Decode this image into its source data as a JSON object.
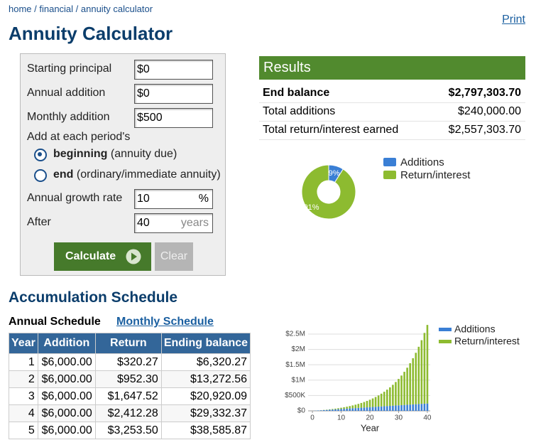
{
  "breadcrumb": "home / financial / annuity calculator",
  "print": "Print",
  "title": "Annuity Calculator",
  "form": {
    "fields": [
      {
        "label": "Starting principal",
        "value": "$0"
      },
      {
        "label": "Annual addition",
        "value": "$0"
      },
      {
        "label": "Monthly addition",
        "value": "$500"
      }
    ],
    "period_label": "Add at each period's",
    "options": [
      {
        "bold": "beginning",
        "note": "(annuity due)",
        "selected": true
      },
      {
        "bold": "end",
        "note": "(ordinary/immediate annuity)",
        "selected": false
      }
    ],
    "growth": {
      "label": "Annual growth rate",
      "value": "10",
      "unit": "%"
    },
    "after": {
      "label": "After",
      "value": "40",
      "unit": "years"
    },
    "buttons": [
      "Calculate",
      "Clear"
    ]
  },
  "results": {
    "title": "Results",
    "rows": [
      [
        "End balance",
        "$2,797,303.70"
      ],
      [
        "Total additions",
        "$240,000.00"
      ],
      [
        "Total return/interest earned",
        "$2,557,303.70"
      ]
    ]
  },
  "schedule": {
    "title": "Accumulation Schedule",
    "tabs": [
      "Annual Schedule",
      "Monthly Schedule"
    ],
    "columns": [
      "Year",
      "Addition",
      "Return",
      "Ending balance"
    ],
    "rows": [
      [
        "1",
        "$6,000.00",
        "$320.27",
        "$6,320.27"
      ],
      [
        "2",
        "$6,000.00",
        "$952.30",
        "$13,272.56"
      ],
      [
        "3",
        "$6,000.00",
        "$1,647.52",
        "$20,920.09"
      ],
      [
        "4",
        "$6,000.00",
        "$2,412.28",
        "$29,332.37"
      ],
      [
        "5",
        "$6,000.00",
        "$3,253.50",
        "$38,585.87"
      ]
    ]
  },
  "chart_data": [
    {
      "type": "pie",
      "donut": true,
      "categories": [
        "Additions",
        "Return/interest"
      ],
      "values": [
        9,
        91
      ],
      "value_labels": [
        "9%",
        "91%"
      ],
      "colors": [
        "#3a7fd5",
        "#8dbb30"
      ],
      "legend": "right"
    },
    {
      "type": "bar",
      "stacked": true,
      "xlabel": "Year",
      "x": [
        1,
        2,
        3,
        4,
        5,
        6,
        7,
        8,
        9,
        10,
        11,
        12,
        13,
        14,
        15,
        16,
        17,
        18,
        19,
        20,
        21,
        22,
        23,
        24,
        25,
        26,
        27,
        28,
        29,
        30,
        31,
        32,
        33,
        34,
        35,
        36,
        37,
        38,
        39,
        40
      ],
      "xlim": [
        -1.5,
        41
      ],
      "xticks": [
        0,
        10,
        20,
        30,
        40
      ],
      "ylim": [
        0,
        2800000
      ],
      "yticks": [
        {
          "value": 0,
          "label": "$0"
        },
        {
          "value": 500000,
          "label": "$500K"
        },
        {
          "value": 1000000,
          "label": "$1M"
        },
        {
          "value": 1500000,
          "label": "$1.5M"
        },
        {
          "value": 2000000,
          "label": "$2M"
        },
        {
          "value": 2500000,
          "label": "$2.5M"
        }
      ],
      "grid": true,
      "legend": "upper right",
      "series": [
        {
          "name": "Additions",
          "color": "#3a7fd5",
          "values": [
            6000,
            12000,
            18000,
            24000,
            30000,
            36000,
            42000,
            48000,
            54000,
            60000,
            66000,
            72000,
            78000,
            84000,
            90000,
            96000,
            102000,
            108000,
            114000,
            120000,
            126000,
            132000,
            138000,
            144000,
            150000,
            156000,
            162000,
            168000,
            174000,
            180000,
            186000,
            192000,
            198000,
            204000,
            210000,
            216000,
            222000,
            228000,
            234000,
            240000
          ]
        },
        {
          "name": "Return/interest",
          "color": "#8dbb30",
          "values": [
            320,
            1273,
            2920,
            5332,
            8586,
            12765,
            17962,
            24278,
            31826,
            40729,
            51122,
            63155,
            76990,
            92809,
            110811,
            131212,
            154254,
            180199,
            209339,
            241993,
            278513,
            319285,
            364733,
            415327,
            471580,
            534058,
            603384,
            680243,
            765388,
            859647,
            963932,
            1079245,
            1206690,
            1347479,
            1502947,
            1674562,
            1863939,
            2072853,
            2303258,
            2557304
          ]
        }
      ]
    }
  ]
}
